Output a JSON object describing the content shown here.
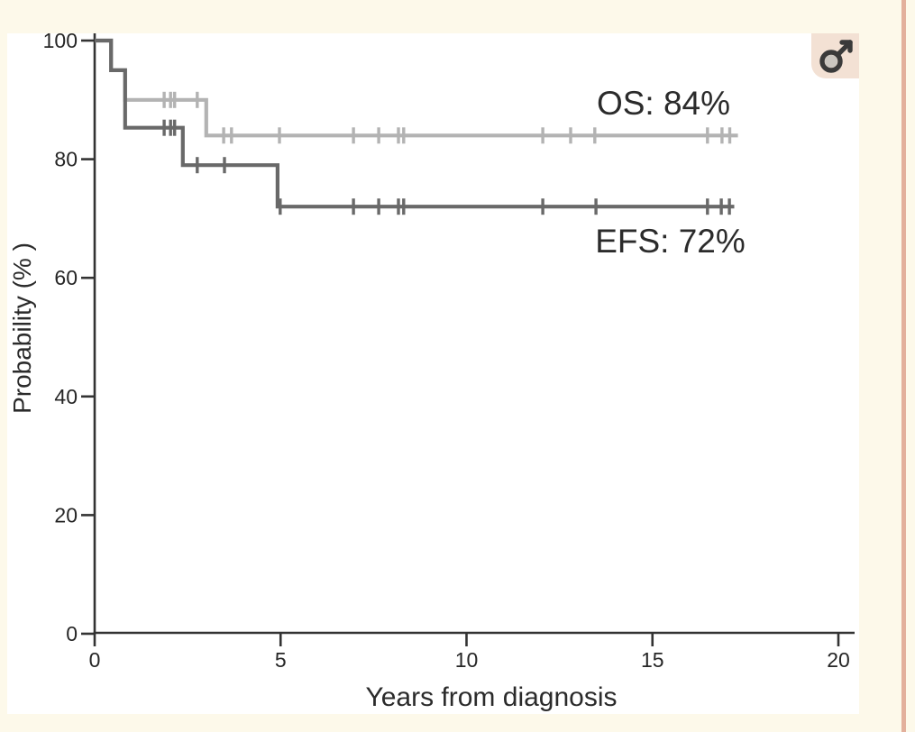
{
  "page": {
    "background_color": "#fdf9ea",
    "panel_background": "#ffffff",
    "right_border_color": "#e3b09c"
  },
  "corner_badge": {
    "icon": "male-symbol",
    "background_color": "#f3e1d4",
    "glyph_color": "#3a3a3a",
    "circle_fill": "#c9c5bf"
  },
  "chart_data": {
    "type": "line",
    "variant": "kaplan-meier-survival-step",
    "title": "",
    "xlabel": "Years from diagnosis",
    "ylabel": "Probability (% )",
    "xlim": [
      0,
      20
    ],
    "ylim": [
      0,
      100
    ],
    "x_ticks": [
      "0",
      "5",
      "10",
      "15",
      "20"
    ],
    "x_tick_values": [
      0,
      5,
      10,
      15,
      20
    ],
    "y_ticks": [
      "0",
      "20",
      "40",
      "60",
      "80",
      "100"
    ],
    "y_tick_values": [
      0,
      20,
      40,
      60,
      80,
      100
    ],
    "grid": false,
    "legend_position": "inline-annotations",
    "axis_color": "#333333",
    "series": [
      {
        "name": "OS",
        "annotation": "OS: 84%",
        "final_percent": 84,
        "color": "#b3b3b3",
        "steps": [
          [
            0,
            100
          ],
          [
            0.44,
            100
          ],
          [
            0.44,
            95
          ],
          [
            0.82,
            95
          ],
          [
            0.82,
            90
          ],
          [
            3.0,
            90
          ],
          [
            3.0,
            84
          ],
          [
            17.3,
            84
          ]
        ],
        "censor_marks": [
          [
            1.87,
            90
          ],
          [
            2.04,
            90
          ],
          [
            2.15,
            90
          ],
          [
            2.76,
            90
          ],
          [
            3.47,
            84
          ],
          [
            3.68,
            84
          ],
          [
            4.97,
            84
          ],
          [
            6.96,
            84
          ],
          [
            7.64,
            84
          ],
          [
            8.17,
            84
          ],
          [
            8.31,
            84
          ],
          [
            12.05,
            84
          ],
          [
            12.8,
            84
          ],
          [
            13.45,
            84
          ],
          [
            16.48,
            84
          ],
          [
            16.87,
            84
          ],
          [
            17.08,
            84
          ]
        ]
      },
      {
        "name": "EFS",
        "annotation": "EFS: 72%",
        "final_percent": 72,
        "color": "#696969",
        "steps": [
          [
            0,
            100
          ],
          [
            0.44,
            100
          ],
          [
            0.44,
            95
          ],
          [
            0.82,
            95
          ],
          [
            0.82,
            85.3
          ],
          [
            2.37,
            85.3
          ],
          [
            2.37,
            79
          ],
          [
            4.92,
            79
          ],
          [
            4.92,
            72
          ],
          [
            17.2,
            72
          ]
        ],
        "censor_marks": [
          [
            1.87,
            85.3
          ],
          [
            2.04,
            85.3
          ],
          [
            2.15,
            85.3
          ],
          [
            2.76,
            79
          ],
          [
            3.49,
            79
          ],
          [
            4.99,
            72
          ],
          [
            6.96,
            72
          ],
          [
            7.64,
            72
          ],
          [
            8.17,
            72
          ],
          [
            8.31,
            72
          ],
          [
            12.05,
            72
          ],
          [
            13.48,
            72
          ],
          [
            16.48,
            72
          ],
          [
            16.85,
            72
          ],
          [
            17.07,
            72
          ]
        ]
      }
    ]
  }
}
